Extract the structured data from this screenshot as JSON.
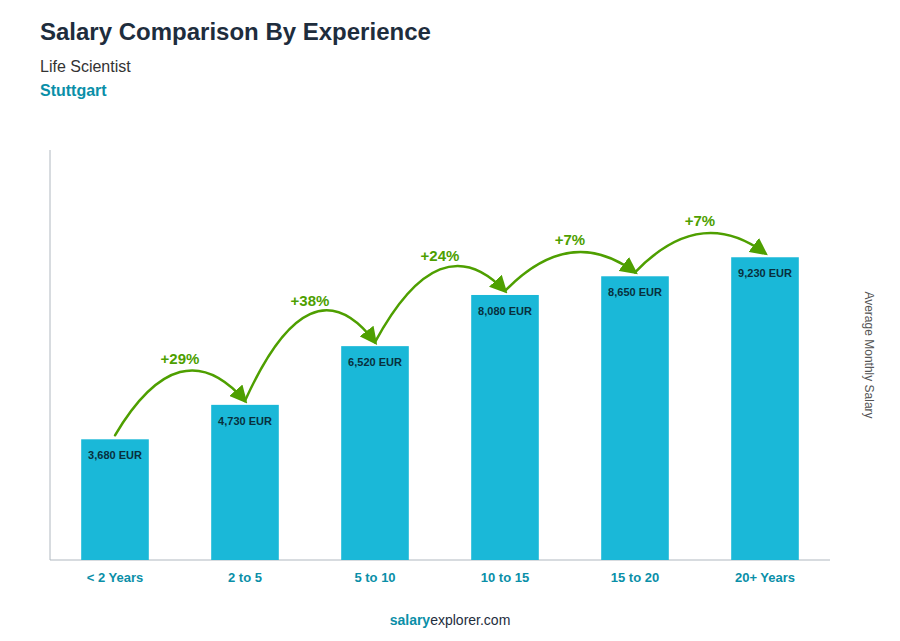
{
  "chart_data": {
    "type": "bar",
    "title": "Salary Comparison By Experience",
    "subtitle": [
      "Life Scientist",
      "Stuttgart"
    ],
    "ylabel": "Average Monthly Salary",
    "categories": [
      "< 2 Years",
      "2 to 5",
      "5 to 10",
      "10 to 15",
      "15 to 20",
      "20+ Years"
    ],
    "values": [
      3680,
      4730,
      6520,
      8080,
      8650,
      9230
    ],
    "value_labels": [
      "3,680 EUR",
      "4,730 EUR",
      "6,520 EUR",
      "8,080 EUR",
      "8,650 EUR",
      "9,230 EUR"
    ],
    "data_labels": true,
    "color": "#1ab8d8",
    "ylim": [
      0,
      12500
    ],
    "tick_labels": "x",
    "grid": false,
    "annotations": [
      {
        "value": 29,
        "label": "+29%"
      },
      {
        "value": 38,
        "label": "+38%"
      },
      {
        "value": 24,
        "label": "+24%"
      },
      {
        "value": 7,
        "label": "+7%"
      },
      {
        "value": 7,
        "label": "+7%"
      }
    ],
    "footer": [
      "salary",
      "explorer.com"
    ]
  }
}
